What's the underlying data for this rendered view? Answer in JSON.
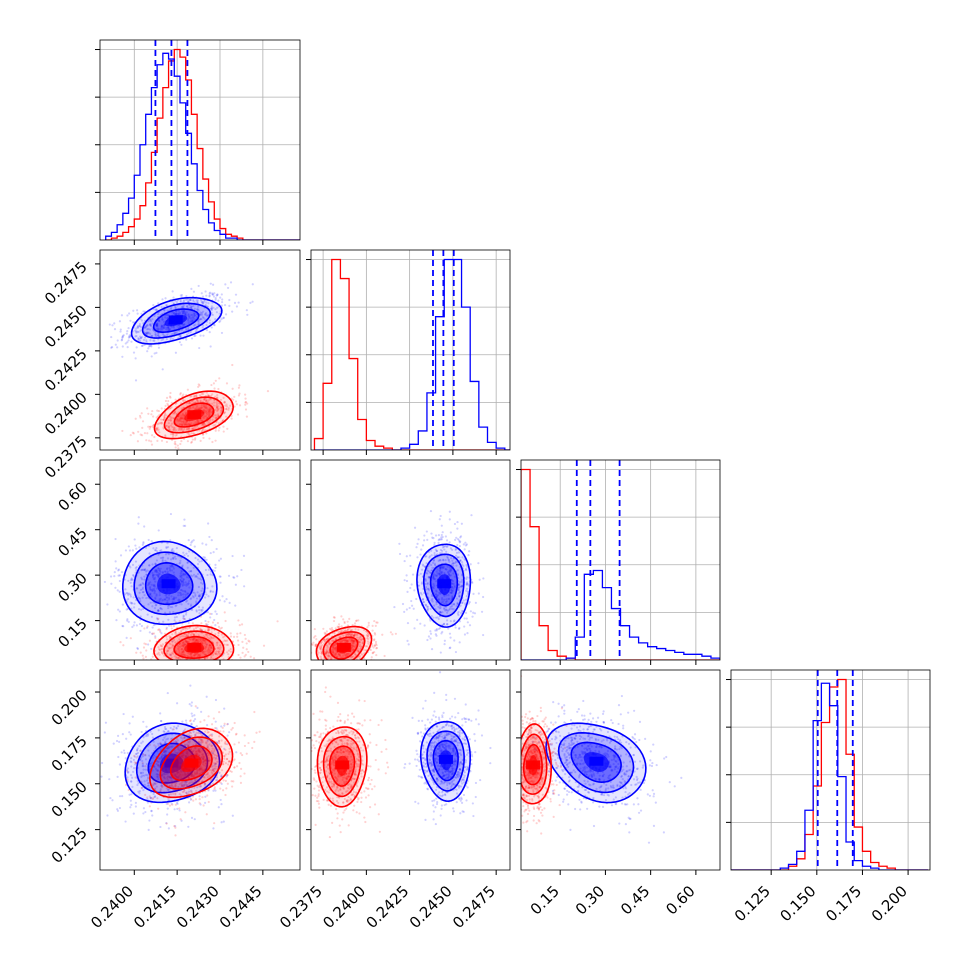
{
  "chart_data": {
    "type": "corner",
    "grid": true,
    "colors": {
      "series_a": "#0000ff",
      "series_b": "#ff0000",
      "grid": "#b0b0b0"
    },
    "parameters": [
      {
        "range": [
          0.2388,
          0.2458
        ],
        "ticks": [
          0.24,
          0.2415,
          0.243,
          0.2445
        ],
        "tick_labels": [
          "0.2400",
          "0.2415",
          "0.2430",
          "0.2445"
        ]
      },
      {
        "range": [
          0.2368,
          0.2483
        ],
        "ticks": [
          0.2375,
          0.24,
          0.2425,
          0.245,
          0.2475
        ],
        "tick_labels": [
          "0.2375",
          "0.2400",
          "0.2425",
          "0.2450",
          "0.2475"
        ]
      },
      {
        "range": [
          0.02,
          0.68
        ],
        "ticks": [
          0.15,
          0.3,
          0.45,
          0.6
        ],
        "tick_labels": [
          "0.15",
          "0.30",
          "0.45",
          "0.60"
        ]
      },
      {
        "range": [
          0.103,
          0.212
        ],
        "ticks": [
          0.125,
          0.15,
          0.175,
          0.2
        ],
        "tick_labels": [
          "0.125",
          "0.150",
          "0.175",
          "0.200"
        ]
      }
    ],
    "marginals": [
      {
        "param": 0,
        "quantiles_series_a": [
          0.24074,
          0.2413,
          0.24186
        ],
        "series_a": {
          "edges_start": 0.239,
          "bin_width": 0.0002,
          "counts": [
            2,
            4,
            8,
            14,
            22,
            34,
            50,
            66,
            80,
            92,
            98,
            95,
            86,
            72,
            56,
            40,
            26,
            16,
            9,
            5,
            3,
            1,
            1,
            0,
            0,
            0,
            0,
            0,
            0,
            0,
            0,
            0,
            0,
            0
          ]
        },
        "series_b": {
          "edges_start": 0.239,
          "bin_width": 0.0002,
          "counts": [
            0,
            1,
            2,
            4,
            7,
            11,
            18,
            30,
            46,
            64,
            80,
            94,
            100,
            96,
            84,
            66,
            48,
            32,
            20,
            11,
            6,
            3,
            2,
            1,
            0,
            0,
            0,
            0,
            0,
            0,
            0,
            0,
            0,
            0
          ]
        }
      },
      {
        "param": 1,
        "quantiles_series_a": [
          0.24385,
          0.24445,
          0.24505
        ],
        "series_a": {
          "edges_start": 0.237,
          "bin_width": 0.0005,
          "counts": [
            0,
            0,
            0,
            0,
            0,
            0,
            0,
            0,
            0,
            0,
            1,
            3,
            10,
            30,
            70,
            100,
            100,
            75,
            36,
            12,
            4,
            1,
            0
          ]
        },
        "series_b": {
          "edges_start": 0.237,
          "bin_width": 0.0005,
          "counts": [
            6,
            35,
            100,
            90,
            48,
            16,
            5,
            2,
            1,
            0,
            0,
            0,
            0,
            0,
            0,
            0,
            0,
            0,
            0,
            0,
            0,
            0,
            0
          ]
        }
      },
      {
        "param": 2,
        "quantiles_series_a": [
          0.205,
          0.25,
          0.347
        ],
        "series_a": {
          "edges_start": 0.02,
          "bin_width": 0.03,
          "counts": [
            0,
            0,
            0,
            0,
            0,
            1,
            12,
            45,
            47,
            38,
            27,
            18,
            12,
            9,
            7,
            6,
            5,
            4,
            3,
            3,
            2,
            1
          ]
        },
        "series_b": {
          "edges_start": 0.02,
          "bin_width": 0.03,
          "counts": [
            100,
            70,
            18,
            5,
            2,
            1,
            0,
            0,
            0,
            0,
            0,
            0,
            0,
            0,
            0,
            0,
            0,
            0,
            0,
            0,
            0,
            0
          ]
        }
      },
      {
        "param": 3,
        "quantiles_series_a": [
          0.1505,
          0.1612,
          0.1697
        ],
        "series_a": {
          "edges_start": 0.103,
          "bin_width": 0.0045,
          "counts": [
            0,
            0,
            0,
            0,
            0,
            0,
            1,
            3,
            10,
            32,
            80,
            100,
            88,
            50,
            15,
            5,
            2,
            1,
            0,
            0,
            0,
            0,
            0,
            0
          ]
        },
        "series_b": {
          "edges_start": 0.103,
          "bin_width": 0.0045,
          "counts": [
            0,
            0,
            0,
            0,
            0,
            0,
            0,
            2,
            6,
            19,
            45,
            79,
            98,
            102,
            62,
            23,
            10,
            4,
            2,
            1,
            0,
            0,
            0,
            0
          ]
        }
      }
    ],
    "joint": [
      {
        "x_param": 0,
        "y_param": 1,
        "series_a": {
          "mean": [
            0.24145,
            0.24425
          ],
          "sd": [
            0.00078,
            0.00068
          ],
          "rho": 0.5
        },
        "series_b": {
          "mean": [
            0.2421,
            0.2388
          ],
          "sd": [
            0.0007,
            0.00066
          ],
          "rho": 0.45
        }
      },
      {
        "x_param": 0,
        "y_param": 2,
        "series_a": {
          "mean": [
            0.2412,
            0.27
          ],
          "sd": [
            0.0008,
            0.07
          ],
          "rho": 0.0
        },
        "series_b": {
          "mean": [
            0.2421,
            0.06
          ],
          "sd": [
            0.0007,
            0.035
          ],
          "rho": 0.0
        }
      },
      {
        "x_param": 1,
        "y_param": 2,
        "series_a": {
          "mean": [
            0.2445,
            0.27
          ],
          "sd": [
            0.00075,
            0.07
          ],
          "rho": 0.0
        },
        "series_b": {
          "mean": [
            0.2387,
            0.06
          ],
          "sd": [
            0.0008,
            0.035
          ],
          "rho": 0.25
        }
      },
      {
        "x_param": 0,
        "y_param": 3,
        "series_a": {
          "mean": [
            0.2413,
            0.161
          ],
          "sd": [
            0.0008,
            0.011
          ],
          "rho": 0.1
        },
        "series_b": {
          "mean": [
            0.242,
            0.161
          ],
          "sd": [
            0.0007,
            0.0095
          ],
          "rho": 0.3
        }
      },
      {
        "x_param": 1,
        "y_param": 3,
        "series_a": {
          "mean": [
            0.2446,
            0.163
          ],
          "sd": [
            0.0007,
            0.011
          ],
          "rho": 0.0
        },
        "series_b": {
          "mean": [
            0.2386,
            0.16
          ],
          "sd": [
            0.0007,
            0.011
          ],
          "rho": 0.0
        }
      },
      {
        "x_param": 2,
        "y_param": 3,
        "series_a": {
          "mean": [
            0.27,
            0.162
          ],
          "sd": [
            0.08,
            0.011
          ],
          "rho": -0.25
        },
        "series_b": {
          "mean": [
            0.06,
            0.16
          ],
          "sd": [
            0.03,
            0.011
          ],
          "rho": 0.0
        }
      }
    ]
  }
}
